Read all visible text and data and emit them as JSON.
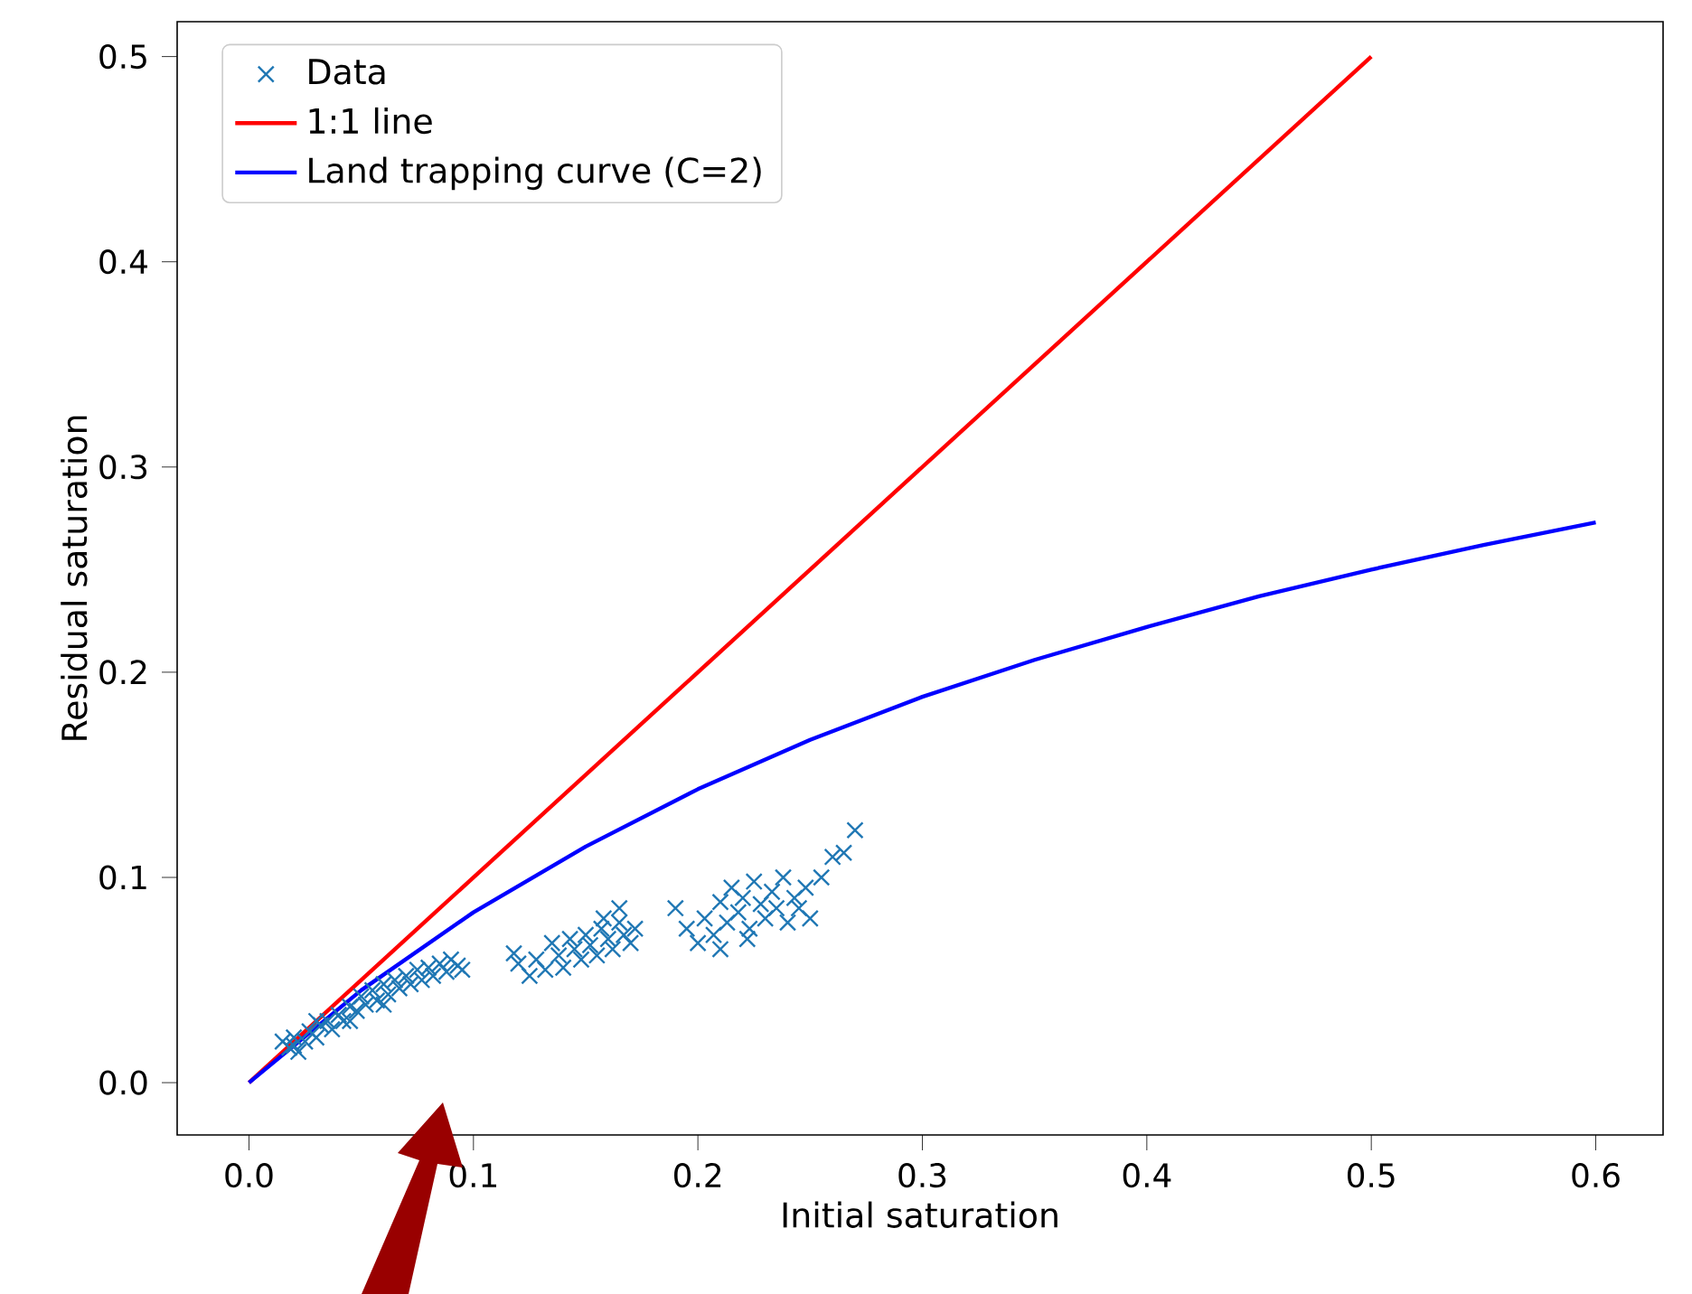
{
  "chart_data": {
    "type": "scatter",
    "xlabel": "Initial saturation",
    "ylabel": "Residual saturation",
    "xlim": [
      -0.032,
      0.63
    ],
    "ylim": [
      -0.0255,
      0.517
    ],
    "xticks": [
      {
        "value": 0,
        "label": "0.0"
      },
      0.1,
      0.2,
      0.3,
      0.4,
      0.5,
      0.6
    ],
    "yticks": [
      {
        "value": 0,
        "label": "0.0"
      },
      0.1,
      0.2,
      0.3,
      0.4,
      0.5
    ],
    "legend": "top left",
    "grid": false,
    "series": [
      {
        "name": "Data",
        "marker": "cross",
        "color": "#1f77b4",
        "x": [
          0.015,
          0.018,
          0.02,
          0.022,
          0.025,
          0.027,
          0.03,
          0.032,
          0.035,
          0.037,
          0.04,
          0.042,
          0.045,
          0.048,
          0.05,
          0.052,
          0.055,
          0.057,
          0.06,
          0.062,
          0.065,
          0.067,
          0.07,
          0.072,
          0.075,
          0.077,
          0.08,
          0.082,
          0.085,
          0.088,
          0.09,
          0.093,
          0.095,
          0.06,
          0.045,
          0.03,
          0.02,
          0.118,
          0.12,
          0.125,
          0.128,
          0.132,
          0.135,
          0.138,
          0.14,
          0.143,
          0.145,
          0.148,
          0.15,
          0.152,
          0.155,
          0.157,
          0.16,
          0.162,
          0.165,
          0.167,
          0.17,
          0.165,
          0.172,
          0.158,
          0.19,
          0.195,
          0.2,
          0.203,
          0.207,
          0.21,
          0.213,
          0.215,
          0.218,
          0.22,
          0.223,
          0.225,
          0.228,
          0.23,
          0.233,
          0.235,
          0.238,
          0.24,
          0.243,
          0.245,
          0.248,
          0.25,
          0.21,
          0.222,
          0.255,
          0.26,
          0.265,
          0.27
        ],
        "values": [
          0.02,
          0.017,
          0.022,
          0.015,
          0.02,
          0.025,
          0.022,
          0.028,
          0.03,
          0.026,
          0.033,
          0.03,
          0.037,
          0.035,
          0.042,
          0.038,
          0.045,
          0.04,
          0.048,
          0.043,
          0.05,
          0.046,
          0.052,
          0.048,
          0.055,
          0.05,
          0.056,
          0.052,
          0.058,
          0.054,
          0.06,
          0.057,
          0.055,
          0.038,
          0.03,
          0.03,
          0.018,
          0.063,
          0.058,
          0.052,
          0.06,
          0.055,
          0.068,
          0.062,
          0.056,
          0.07,
          0.065,
          0.06,
          0.072,
          0.067,
          0.062,
          0.075,
          0.07,
          0.065,
          0.078,
          0.072,
          0.068,
          0.085,
          0.075,
          0.08,
          0.085,
          0.075,
          0.068,
          0.08,
          0.072,
          0.088,
          0.078,
          0.095,
          0.083,
          0.09,
          0.075,
          0.098,
          0.087,
          0.08,
          0.093,
          0.085,
          0.1,
          0.078,
          0.09,
          0.085,
          0.095,
          0.08,
          0.065,
          0.07,
          0.1,
          0.11,
          0.112,
          0.123
        ]
      },
      {
        "name": "1:1 line",
        "type": "line",
        "line_style": "solid",
        "color": "#ff0000",
        "x": [
          0,
          0.5
        ],
        "values": [
          0,
          0.5
        ]
      },
      {
        "name": "Land trapping curve (C=2)",
        "type": "line",
        "line_style": "solid",
        "color": "#0000ff",
        "x": [
          0,
          0.05,
          0.1,
          0.15,
          0.2,
          0.25,
          0.3,
          0.35,
          0.4,
          0.45,
          0.5,
          0.55,
          0.6
        ],
        "values": [
          0,
          0.045,
          0.083,
          0.115,
          0.143,
          0.167,
          0.188,
          0.206,
          0.222,
          0.237,
          0.25,
          0.262,
          0.273
        ]
      }
    ]
  }
}
